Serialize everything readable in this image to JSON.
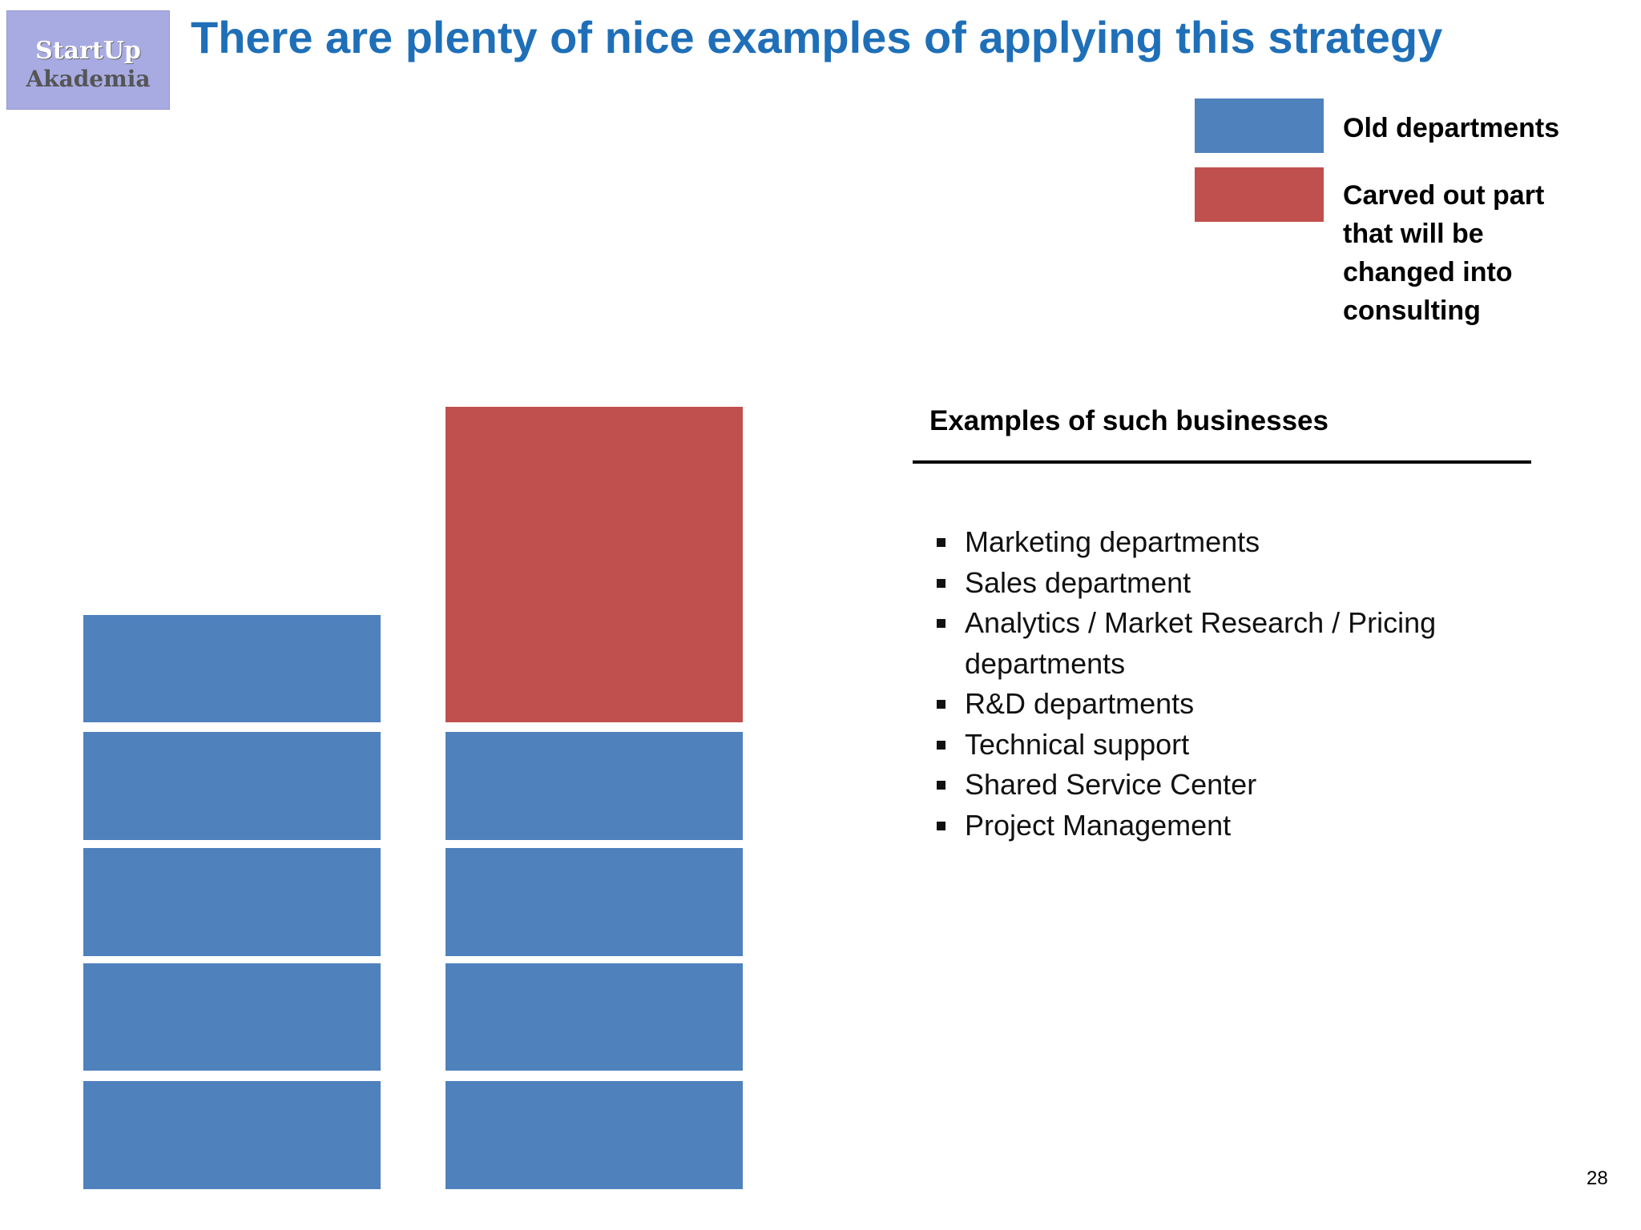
{
  "header": {
    "title": "There are plenty of nice examples of applying this strategy",
    "logo": {
      "line1": "StartUp",
      "line2": "Akademia"
    }
  },
  "legend": [
    {
      "label": "Old departments"
    },
    {
      "label": "Carved out part that will be changed into consulting"
    }
  ],
  "examples": {
    "heading": "Examples of such businesses",
    "items": [
      "Marketing departments",
      "Sales department",
      "Analytics / Market Research / Pricing departments",
      "R&D departments",
      "Technical support",
      "Shared Service Center",
      "Project Management"
    ]
  },
  "page_number": "28"
}
